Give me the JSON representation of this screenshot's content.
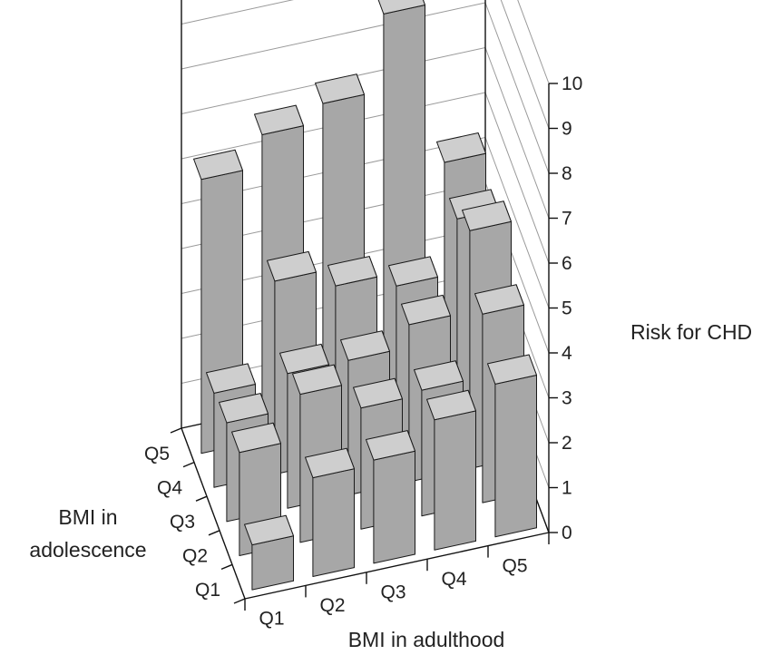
{
  "chart_data": {
    "type": "bar",
    "title": "",
    "xlabel": "BMI in adulthood",
    "ylabel": "BMI in adolescence",
    "zlabel": "Risk for CHD",
    "x_categories": [
      "Q1",
      "Q2",
      "Q3",
      "Q4",
      "Q5"
    ],
    "y_categories": [
      "Q1",
      "Q2",
      "Q3",
      "Q4",
      "Q5"
    ],
    "z_ticks": [
      "0",
      "1",
      "2",
      "3",
      "4",
      "5",
      "6",
      "7",
      "8",
      "9",
      "10"
    ],
    "zlim": [
      0,
      10
    ],
    "grid": true,
    "bars": [
      {
        "adulthood": "Q1",
        "adolescence": "Q1",
        "risk": 1.0
      },
      {
        "adulthood": "Q1",
        "adolescence": "Q2",
        "risk": 2.3
      },
      {
        "adulthood": "Q1",
        "adolescence": "Q3",
        "risk": 2.2
      },
      {
        "adulthood": "Q1",
        "adolescence": "Q4",
        "risk": 2.1
      },
      {
        "adulthood": "Q1",
        "adolescence": "Q5",
        "risk": 6.1
      },
      {
        "adulthood": "Q2",
        "adolescence": "Q1",
        "risk": 2.2
      },
      {
        "adulthood": "Q2",
        "adolescence": "Q2",
        "risk": 3.3
      },
      {
        "adulthood": "Q2",
        "adolescence": "Q3",
        "risk": 3.0
      },
      {
        "adulthood": "Q2",
        "adolescence": "Q4",
        "risk": 4.3
      },
      {
        "adulthood": "Q2",
        "adolescence": "Q5",
        "risk": 6.8
      },
      {
        "adulthood": "Q3",
        "adolescence": "Q1",
        "risk": 2.3
      },
      {
        "adulthood": "Q3",
        "adolescence": "Q2",
        "risk": 2.7
      },
      {
        "adulthood": "Q3",
        "adolescence": "Q3",
        "risk": 3.0
      },
      {
        "adulthood": "Q3",
        "adolescence": "Q4",
        "risk": 3.9
      },
      {
        "adulthood": "Q3",
        "adolescence": "Q5",
        "risk": 7.2
      },
      {
        "adulthood": "Q4",
        "adolescence": "Q1",
        "risk": 2.9
      },
      {
        "adulthood": "Q4",
        "adolescence": "Q2",
        "risk": 2.8
      },
      {
        "adulthood": "Q4",
        "adolescence": "Q3",
        "risk": 3.5
      },
      {
        "adulthood": "Q4",
        "adolescence": "Q4",
        "risk": 3.6
      },
      {
        "adulthood": "Q4",
        "adolescence": "Q5",
        "risk": 8.9
      },
      {
        "adulthood": "Q5",
        "adolescence": "Q1",
        "risk": 3.4
      },
      {
        "adulthood": "Q5",
        "adolescence": "Q2",
        "risk": 4.2
      },
      {
        "adulthood": "Q5",
        "adolescence": "Q3",
        "risk": 5.3
      },
      {
        "adulthood": "Q5",
        "adolescence": "Q4",
        "risk": 4.8
      },
      {
        "adulthood": "Q5",
        "adolescence": "Q5",
        "risk": 5.3
      }
    ],
    "colors": {
      "bar_front": "#a7a7a7",
      "bar_side": "#878787",
      "bar_top": "#cecece",
      "grid": "#9a9a9a",
      "frame": "#111111"
    }
  }
}
